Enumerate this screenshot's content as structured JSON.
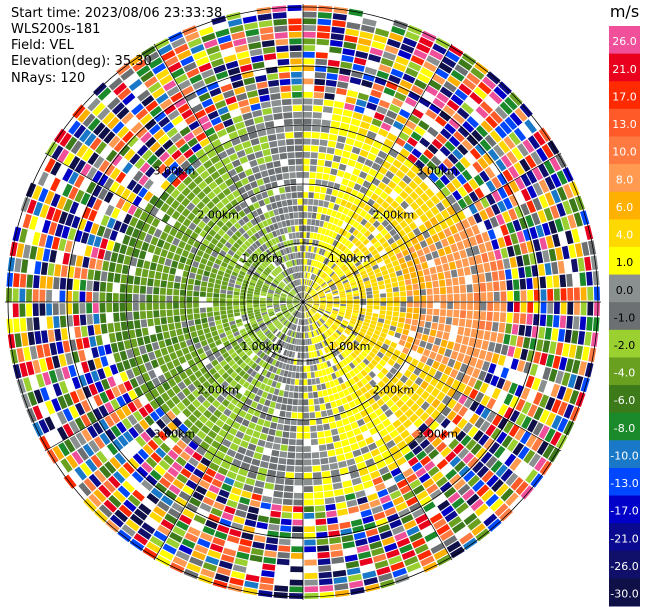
{
  "header": {
    "start_time": "Start time: 2023/08/06 23:33:38",
    "instrument": "WLS200s-181",
    "field": "Field: VEL",
    "elevation": "Elevation(deg): 35.30",
    "nrays": "NRays: 120"
  },
  "chart_data": {
    "type": "heatmap",
    "projection": "polar-ppi",
    "nrays": 120,
    "range_rings_km": [
      1.0,
      2.0,
      3.0
    ],
    "range_rings_labels": [
      "1.00km",
      "2.00km",
      "3.00km"
    ],
    "radial_spokes_deg": [
      0,
      30,
      60,
      90,
      120,
      150,
      180,
      210,
      240,
      270,
      300,
      330
    ],
    "colorbar": {
      "unit": "m/s",
      "ticks": [
        "26.0",
        "21.0",
        "17.0",
        "13.0",
        "10.0",
        "8.0",
        "6.0",
        "4.0",
        "1.0",
        "0.0",
        "-1.0",
        "-2.0",
        "-4.0",
        "-6.0",
        "-8.0",
        "-10.0",
        "-13.0",
        "-17.0",
        "-21.0",
        "-26.0",
        "-30.0"
      ],
      "colors": [
        "#f0509a",
        "#e8001c",
        "#ff2a00",
        "#ff5a28",
        "#ff7a40",
        "#ff9a50",
        "#ffb000",
        "#ffd800",
        "#ffff00",
        "#8a8f90",
        "#6c7072",
        "#9ad030",
        "#6aa020",
        "#3c7a1a",
        "#1a8a2a",
        "#1a78c8",
        "#0048ff",
        "#0000c8",
        "#0a0a90",
        "#10106a",
        "#101048"
      ]
    },
    "pattern": {
      "approach_sector": "east (positive, yellow-orange)",
      "recede_sector": "west (negative, green)",
      "outer_range": "noisy / random"
    }
  }
}
